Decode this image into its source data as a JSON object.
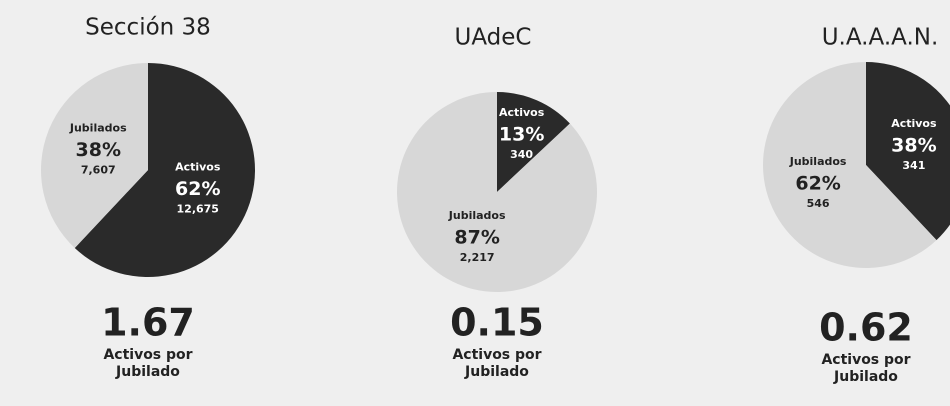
{
  "chart_data": [
    {
      "type": "pie",
      "title": "Sección 38",
      "categories": [
        "Activos",
        "Jubilados"
      ],
      "values": [
        62,
        38
      ],
      "value_labels": [
        "62%",
        "38%"
      ],
      "counts": [
        12675,
        7607
      ],
      "count_labels": [
        "12,675",
        "7,607"
      ],
      "colors": [
        "#2a2a2a",
        "#d7d7d7"
      ],
      "ratio": 1.67,
      "ratio_label": "Activos por Jubilado"
    },
    {
      "type": "pie",
      "title": "UAdeC",
      "categories": [
        "Activos",
        "Jubilados"
      ],
      "values": [
        13,
        87
      ],
      "value_labels": [
        "13%",
        "87%"
      ],
      "counts": [
        340,
        2217
      ],
      "count_labels": [
        "340",
        "2,217"
      ],
      "colors": [
        "#2a2a2a",
        "#d7d7d7"
      ],
      "ratio": 0.15,
      "ratio_label": "Activos por Jubilado"
    },
    {
      "type": "pie",
      "title": "U.A.A.A.N.",
      "categories": [
        "Activos",
        "Jubilados"
      ],
      "values": [
        38,
        62
      ],
      "value_labels": [
        "38%",
        "62%"
      ],
      "counts": [
        341,
        546
      ],
      "count_labels": [
        "341",
        "546"
      ],
      "colors": [
        "#2a2a2a",
        "#d7d7d7"
      ],
      "ratio": 0.62,
      "ratio_label": "Activos por Jubilado"
    }
  ]
}
